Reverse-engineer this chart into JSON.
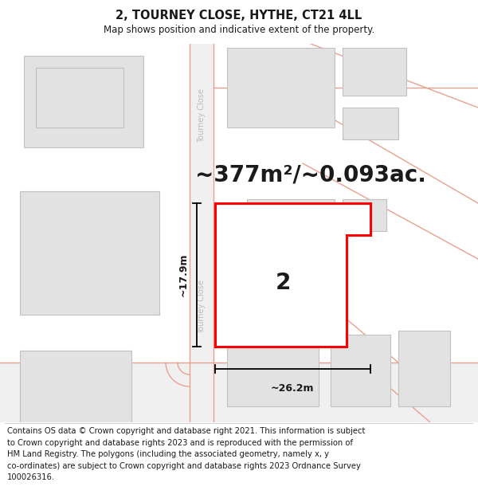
{
  "title": "2, TOURNEY CLOSE, HYTHE, CT21 4LL",
  "subtitle": "Map shows position and indicative extent of the property.",
  "area_text": "~377m²/~0.093ac.",
  "dim_width": "~26.2m",
  "dim_height": "~17.9m",
  "label_number": "2",
  "street_label": "Tourney Close",
  "copyright_text": "Contains OS data © Crown copyright and database right 2021. This information is subject\nto Crown copyright and database rights 2023 and is reproduced with the permission of\nHM Land Registry. The polygons (including the associated geometry, namely x, y\nco-ordinates) are subject to Crown copyright and database rights 2023 Ordnance Survey\n100026316.",
  "bg_color": "#ffffff",
  "map_bg": "#f5f5f5",
  "road_color": "#e8a090",
  "road_fill": "#f5f5f5",
  "building_fill": "#e2e2e2",
  "building_edge": "#c0c0c0",
  "highlight_color": "#ff0000",
  "highlight_fill": "#ffffff",
  "title_fontsize": 10.5,
  "subtitle_fontsize": 8.5,
  "area_fontsize": 20,
  "label_fontsize": 20,
  "dim_fontsize": 9,
  "copyright_fontsize": 7.2,
  "street_label_color": "#bbbbbb",
  "street_label_fontsize": 7
}
